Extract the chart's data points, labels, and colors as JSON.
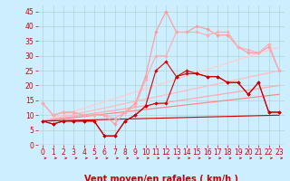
{
  "xlabel": "Vent moyen/en rafales ( km/h )",
  "xlabel_color": "#cc0000",
  "bg_color": "#cceeff",
  "grid_color": "#aacccc",
  "xlim": [
    -0.5,
    23.5
  ],
  "ylim": [
    0,
    47
  ],
  "yticks": [
    0,
    5,
    10,
    15,
    20,
    25,
    30,
    35,
    40,
    45
  ],
  "xticks": [
    0,
    1,
    2,
    3,
    4,
    5,
    6,
    7,
    8,
    9,
    10,
    11,
    12,
    13,
    14,
    15,
    16,
    17,
    18,
    19,
    20,
    21,
    22,
    23
  ],
  "series": [
    {
      "x": [
        0,
        1,
        2,
        3,
        4,
        5,
        6,
        7,
        8,
        9,
        10,
        11,
        12,
        13,
        14,
        15,
        16,
        17,
        18,
        19,
        20,
        21,
        22,
        23
      ],
      "y": [
        14,
        10,
        11,
        11,
        10,
        10,
        10,
        7,
        11,
        14,
        23,
        38,
        45,
        38,
        38,
        40,
        39,
        37,
        37,
        33,
        31,
        31,
        33,
        25
      ],
      "color": "#ff9999",
      "lw": 0.8,
      "marker": "D",
      "ms": 1.8
    },
    {
      "x": [
        0,
        1,
        2,
        3,
        4,
        5,
        6,
        7,
        8,
        9,
        10,
        11,
        12,
        13,
        14,
        15,
        16,
        17,
        18,
        19,
        20,
        21,
        22,
        23
      ],
      "y": [
        14,
        10,
        11,
        11,
        10,
        10,
        10,
        9,
        11,
        13,
        22,
        30,
        30,
        38,
        38,
        38,
        37,
        38,
        38,
        33,
        32,
        31,
        34,
        25
      ],
      "color": "#ffaaaa",
      "lw": 0.8,
      "marker": "D",
      "ms": 1.8
    },
    {
      "x": [
        0,
        23
      ],
      "y": [
        8,
        33
      ],
      "color": "#ffcccc",
      "lw": 0.9,
      "marker": null,
      "ms": 0
    },
    {
      "x": [
        0,
        23
      ],
      "y": [
        8,
        25
      ],
      "color": "#ffbbbb",
      "lw": 0.9,
      "marker": null,
      "ms": 0
    },
    {
      "x": [
        0,
        23
      ],
      "y": [
        8,
        20
      ],
      "color": "#ffaaaa",
      "lw": 0.9,
      "marker": null,
      "ms": 0
    },
    {
      "x": [
        0,
        23
      ],
      "y": [
        8,
        17
      ],
      "color": "#ff8888",
      "lw": 0.9,
      "marker": null,
      "ms": 0
    },
    {
      "x": [
        0,
        23
      ],
      "y": [
        8,
        10
      ],
      "color": "#cc0000",
      "lw": 0.8,
      "marker": null,
      "ms": 0
    },
    {
      "x": [
        0,
        1,
        2,
        3,
        4,
        5,
        6,
        7,
        8,
        9,
        10,
        11,
        12,
        13,
        14,
        15,
        16,
        17,
        18,
        19,
        20,
        21,
        22,
        23
      ],
      "y": [
        8,
        7,
        8,
        8,
        8,
        8,
        3,
        3,
        8,
        10,
        13,
        25,
        28,
        23,
        25,
        24,
        23,
        23,
        21,
        21,
        17,
        21,
        11,
        11
      ],
      "color": "#dd0000",
      "lw": 0.8,
      "marker": "D",
      "ms": 1.8
    },
    {
      "x": [
        0,
        1,
        2,
        3,
        4,
        5,
        6,
        7,
        8,
        9,
        10,
        11,
        12,
        13,
        14,
        15,
        16,
        17,
        18,
        19,
        20,
        21,
        22,
        23
      ],
      "y": [
        8,
        7,
        8,
        8,
        8,
        8,
        3,
        3,
        8,
        10,
        13,
        14,
        14,
        23,
        24,
        24,
        23,
        23,
        21,
        21,
        17,
        21,
        11,
        11
      ],
      "color": "#cc0000",
      "lw": 0.8,
      "marker": "D",
      "ms": 1.8
    }
  ],
  "arrow_color": "#cc0000",
  "tick_color": "#cc0000",
  "tick_fontsize": 5.5,
  "xlabel_fontsize": 7.0
}
